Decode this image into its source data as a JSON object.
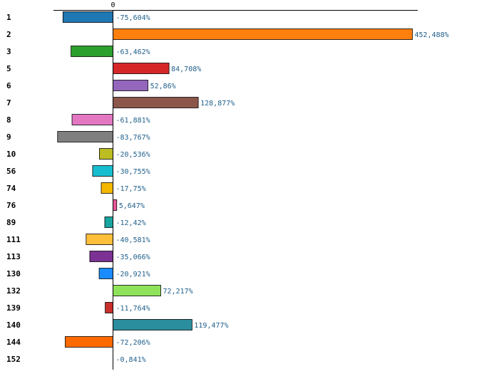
{
  "chart_data": {
    "type": "bar",
    "orientation": "horizontal",
    "title": "",
    "xlabel": "",
    "ylabel": "",
    "xlim": [
      -100,
      520
    ],
    "x_ticks": [
      {
        "value": 0,
        "label": "0"
      }
    ],
    "grid": false,
    "legend": "none",
    "categories": [
      "1",
      "2",
      "3",
      "5",
      "6",
      "7",
      "8",
      "9",
      "10",
      "56",
      "74",
      "76",
      "89",
      "111",
      "113",
      "130",
      "132",
      "139",
      "140",
      "144",
      "152"
    ],
    "values": [
      -75.604,
      452.488,
      -63.462,
      84.708,
      52.86,
      128.877,
      -61.881,
      -83.767,
      -20.536,
      -30.755,
      -17.75,
      5.647,
      -12.42,
      -40.581,
      -35.066,
      -20.921,
      72.217,
      -11.764,
      119.477,
      -72.206,
      -0.841
    ],
    "value_labels": [
      "-75,604%",
      "452,488%",
      "-63,462%",
      "84,708%",
      "52,86%",
      "128,877%",
      "-61,881%",
      "-83,767%",
      "-20,536%",
      "-30,755%",
      "-17,75%",
      "5,647%",
      "-12,42%",
      "-40,581%",
      "-35,066%",
      "-20,921%",
      "72,217%",
      "-11,764%",
      "119,477%",
      "-72,206%",
      "-0,841%"
    ],
    "colors": [
      "#1f77b4",
      "#ff7f0e",
      "#2ca02c",
      "#d62728",
      "#9467bd",
      "#8c564b",
      "#e377c2",
      "#7f7f7f",
      "#bcbd22",
      "#17becf",
      "#f5b800",
      "#e8579c",
      "#17a5a0",
      "#fdbf3a",
      "#7b3294",
      "#1a8cff",
      "#8fe35a",
      "#c9302c",
      "#2b8e9e",
      "#ff6a00",
      "#888888"
    ]
  }
}
